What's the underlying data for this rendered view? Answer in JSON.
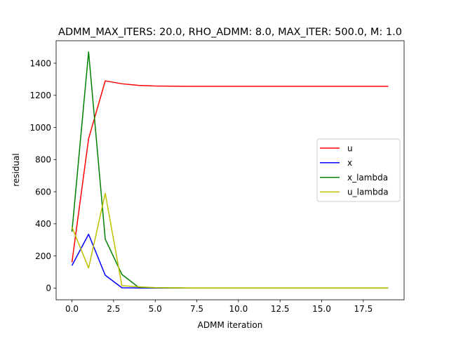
{
  "chart_data": {
    "type": "line",
    "title": "ADMM_MAX_ITERS: 20.0, RHO_ADMM: 8.0, MAX_ITER: 500.0, M: 1.0",
    "xlabel": "ADMM iteration",
    "ylabel": "residual",
    "xlim": [
      -0.95,
      19.95
    ],
    "ylim": [
      -73,
      1540
    ],
    "xticks": [
      0.0,
      2.5,
      5.0,
      7.5,
      10.0,
      12.5,
      15.0,
      17.5
    ],
    "xtick_labels": [
      "0.0",
      "2.5",
      "5.0",
      "7.5",
      "10.0",
      "12.5",
      "15.0",
      "17.5"
    ],
    "yticks": [
      0,
      200,
      400,
      600,
      800,
      1000,
      1200,
      1400
    ],
    "ytick_labels": [
      "0",
      "200",
      "400",
      "600",
      "800",
      "1000",
      "1200",
      "1400"
    ],
    "grid": false,
    "legend_position": "center-right",
    "x": [
      0,
      1,
      2,
      3,
      4,
      5,
      6,
      7,
      8,
      9,
      10,
      11,
      12,
      13,
      14,
      15,
      16,
      17,
      18,
      19
    ],
    "series": [
      {
        "name": "u",
        "color": "#ff0000",
        "values": [
          160,
          930,
          1290,
          1272,
          1262,
          1258,
          1257,
          1256,
          1256,
          1256,
          1256,
          1256,
          1256,
          1256,
          1256,
          1256,
          1256,
          1256,
          1256,
          1256
        ]
      },
      {
        "name": "x",
        "color": "#0000ff",
        "values": [
          140,
          335,
          80,
          2,
          1,
          0,
          0,
          0,
          0,
          0,
          0,
          0,
          0,
          0,
          0,
          0,
          0,
          0,
          0,
          0
        ]
      },
      {
        "name": "x_lambda",
        "color": "#008000",
        "values": [
          350,
          1470,
          305,
          85,
          5,
          2,
          1,
          0,
          0,
          0,
          0,
          0,
          0,
          0,
          0,
          0,
          0,
          0,
          0,
          0
        ]
      },
      {
        "name": "u_lambda",
        "color": "#bfbf00",
        "values": [
          380,
          125,
          590,
          15,
          8,
          3,
          2,
          1,
          1,
          1,
          1,
          1,
          1,
          1,
          1,
          1,
          1,
          1,
          1,
          1
        ]
      }
    ]
  }
}
